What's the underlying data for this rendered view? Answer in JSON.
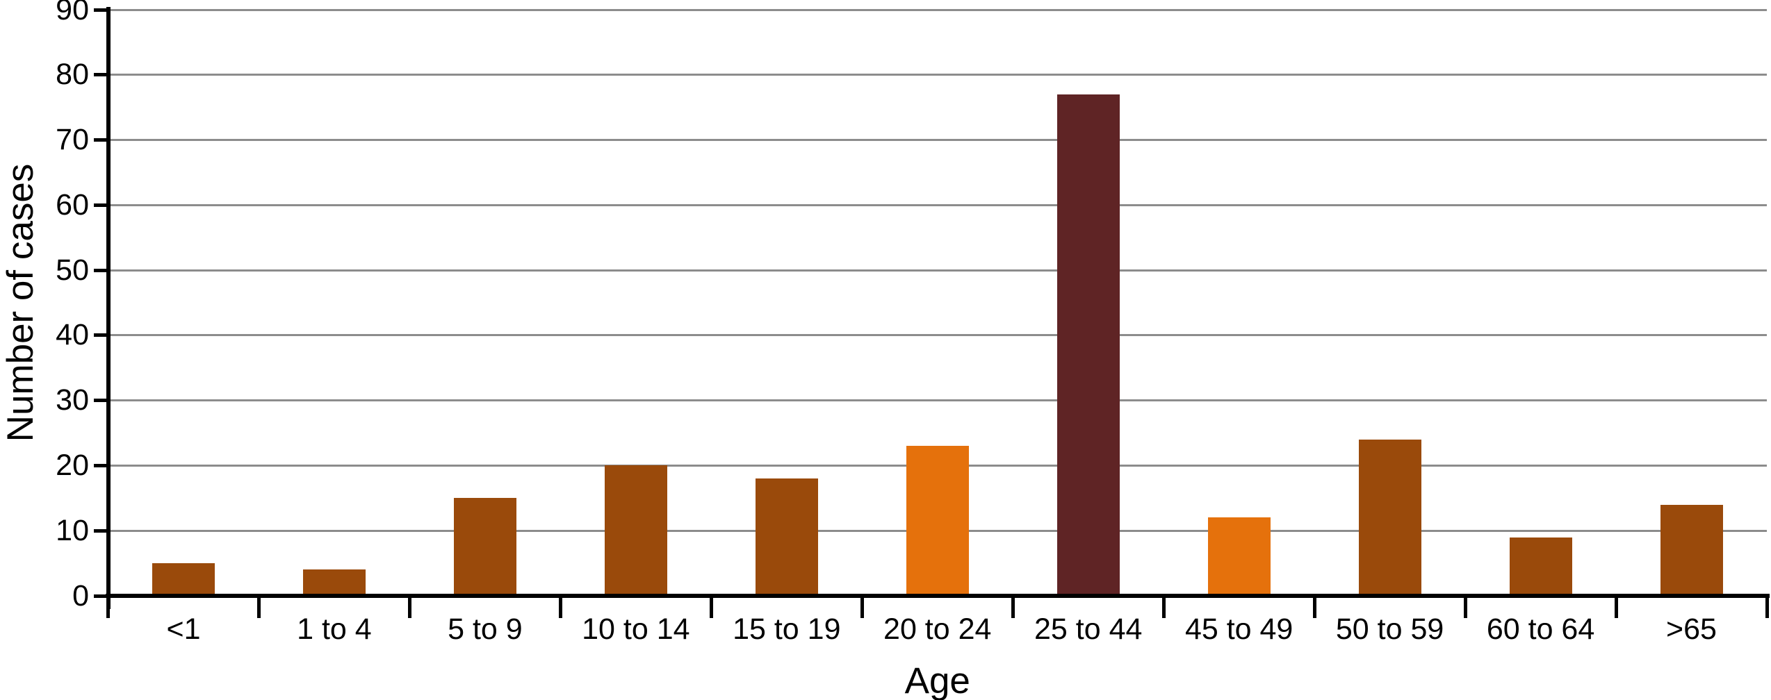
{
  "chart_data": {
    "type": "bar",
    "title": "",
    "xlabel": "Age",
    "ylabel": "Number of cases",
    "categories": [
      "<1",
      "1 to 4",
      "5 to 9",
      "10 to 14",
      "15 to 19",
      "20 to 24",
      "25 to 44",
      "45 to 49",
      "50 to 59",
      "60 to 64",
      ">65"
    ],
    "values": [
      5,
      4,
      15,
      20,
      18,
      23,
      77,
      12,
      24,
      9,
      14
    ],
    "bar_colors": [
      "#9A4A0B",
      "#9A4A0B",
      "#9A4A0B",
      "#9A4A0B",
      "#9A4A0B",
      "#E5710C",
      "#5F2425",
      "#E5710C",
      "#9A4A0B",
      "#9A4A0B",
      "#9A4A0B"
    ],
    "ylim": [
      0,
      90
    ],
    "ytick_step": 10,
    "ytick_labels": [
      "0",
      "10",
      "20",
      "30",
      "40",
      "50",
      "60",
      "70",
      "80",
      "90"
    ],
    "grid": "horizontal gridlines at every 10, gray",
    "legend": "none",
    "colors": {
      "bar_brown": "#9A4A0B",
      "bar_orange": "#E5710C",
      "bar_maroon": "#5F2425",
      "gridline": "#8C8C8C",
      "axis": "#000000",
      "background": "#FFFFFF",
      "text": "#000000"
    }
  }
}
